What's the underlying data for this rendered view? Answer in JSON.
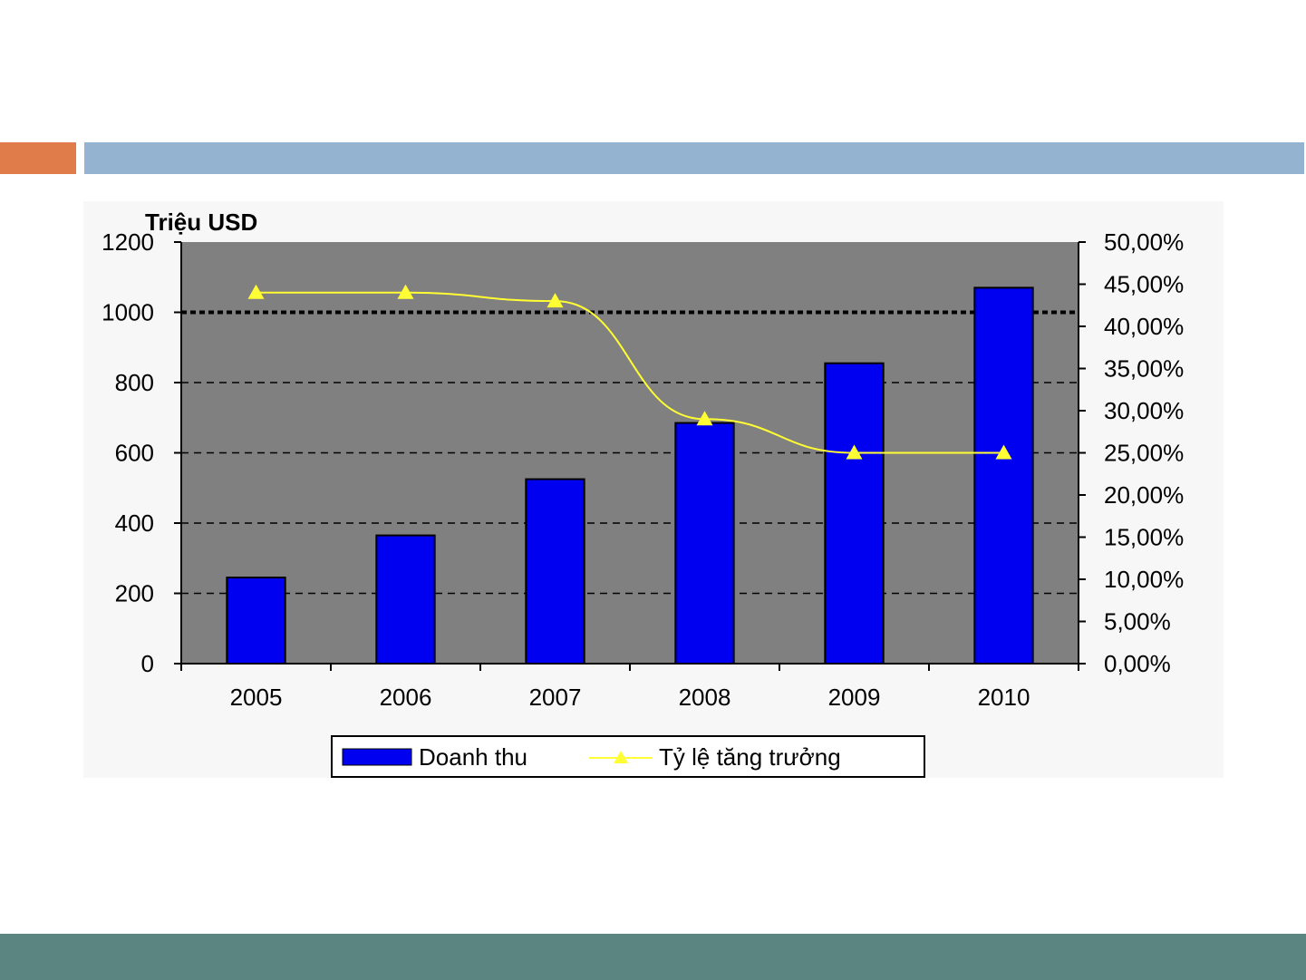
{
  "slide": {
    "colors": {
      "accent_left": "#E07B4A",
      "accent_bar": "#93B3D1",
      "footer": "#5B8581",
      "plot_bg": "#808080",
      "bar": "#0000F0",
      "line": "#FFFF33",
      "chart_bg": "#F7F7F7"
    }
  },
  "chart_data": {
    "type": "bar",
    "categories": [
      "2005",
      "2006",
      "2007",
      "2008",
      "2009",
      "2010"
    ],
    "series": [
      {
        "name": "Doanh thu",
        "type": "bar",
        "axis": "left",
        "values": [
          245,
          365,
          525,
          685,
          855,
          1070
        ]
      },
      {
        "name": "Tỷ lệ tăng trưởng",
        "type": "line",
        "axis": "right",
        "values": [
          44.0,
          44.0,
          43.0,
          29.0,
          25.0,
          25.0
        ]
      }
    ],
    "left_axis": {
      "label": "Triệu USD",
      "ylim": [
        0,
        1200
      ],
      "ticks": [
        "0",
        "200",
        "400",
        "600",
        "800",
        "1000",
        "1200"
      ]
    },
    "right_axis": {
      "ylim": [
        0,
        50
      ],
      "ticks": [
        "0,00%",
        "5,00%",
        "10,00%",
        "15,00%",
        "20,00%",
        "25,00%",
        "30,00%",
        "35,00%",
        "40,00%",
        "45,00%",
        "50,00%"
      ]
    },
    "grid": true,
    "legend": "bottom"
  }
}
